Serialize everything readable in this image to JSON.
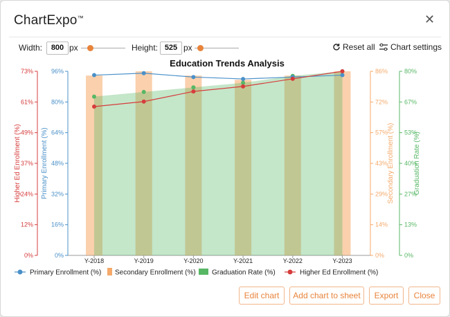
{
  "app": {
    "brand": "ChartExpo",
    "tm": "™",
    "close_glyph": "✕"
  },
  "toolbar": {
    "width_label": "Width:",
    "width_value": "800",
    "width_unit": "px",
    "height_label": "Height:",
    "height_value": "525",
    "height_unit": "px",
    "reset_label": "Reset all",
    "settings_label": "Chart settings"
  },
  "buttons": {
    "edit": "Edit chart",
    "add": "Add chart to sheet",
    "export": "Export",
    "close": "Close"
  },
  "colors": {
    "primary": "#4a90c8",
    "secondary": "#f5a96a",
    "graduation": "#57b765",
    "higher": "#d63c3c",
    "accent": "#e8833a"
  },
  "chart_data": {
    "type": "combo",
    "title": "Education Trends Analysis",
    "categories": [
      "Y-2018",
      "Y-2019",
      "Y-2020",
      "Y-2021",
      "Y-2022",
      "Y-2023"
    ],
    "series": [
      {
        "name": "Primary Enrollment (%)",
        "kind": "line",
        "axis": "primary",
        "values": [
          94,
          95,
          93,
          92,
          93,
          94
        ]
      },
      {
        "name": "Secondary Enrollment (%)",
        "kind": "bar",
        "axis": "secondary",
        "values": [
          84,
          86,
          84,
          82,
          84,
          86
        ]
      },
      {
        "name": "Graduation Rate (%)",
        "kind": "area",
        "axis": "graduation",
        "values": [
          69,
          71,
          73,
          75,
          78,
          80
        ]
      },
      {
        "name": "Higher Ed Enrollment (%)",
        "kind": "line",
        "axis": "higher",
        "values": [
          59,
          61,
          65,
          67,
          70,
          73
        ]
      }
    ],
    "axes": {
      "higher": {
        "label": "Higher Ed Enrollment (%)",
        "ticks": [
          "0%",
          "12%",
          "24%",
          "37%",
          "49%",
          "61%",
          "73%"
        ],
        "min": 0,
        "max": 73
      },
      "primary": {
        "label": "Primary Enrollment (%)",
        "ticks": [
          "0%",
          "16%",
          "32%",
          "48%",
          "64%",
          "80%",
          "96%"
        ],
        "min": 0,
        "max": 96
      },
      "secondary": {
        "label": "Secondary Enrollment (%)",
        "ticks": [
          "0%",
          "14%",
          "29%",
          "43%",
          "57%",
          "72%",
          "86%"
        ],
        "min": 0,
        "max": 86
      },
      "graduation": {
        "label": "Graduation Rate (%)",
        "ticks": [
          "0%",
          "13%",
          "27%",
          "40%",
          "53%",
          "67%",
          "80%"
        ],
        "min": 0,
        "max": 80
      }
    },
    "legend_position": "bottom-left"
  }
}
